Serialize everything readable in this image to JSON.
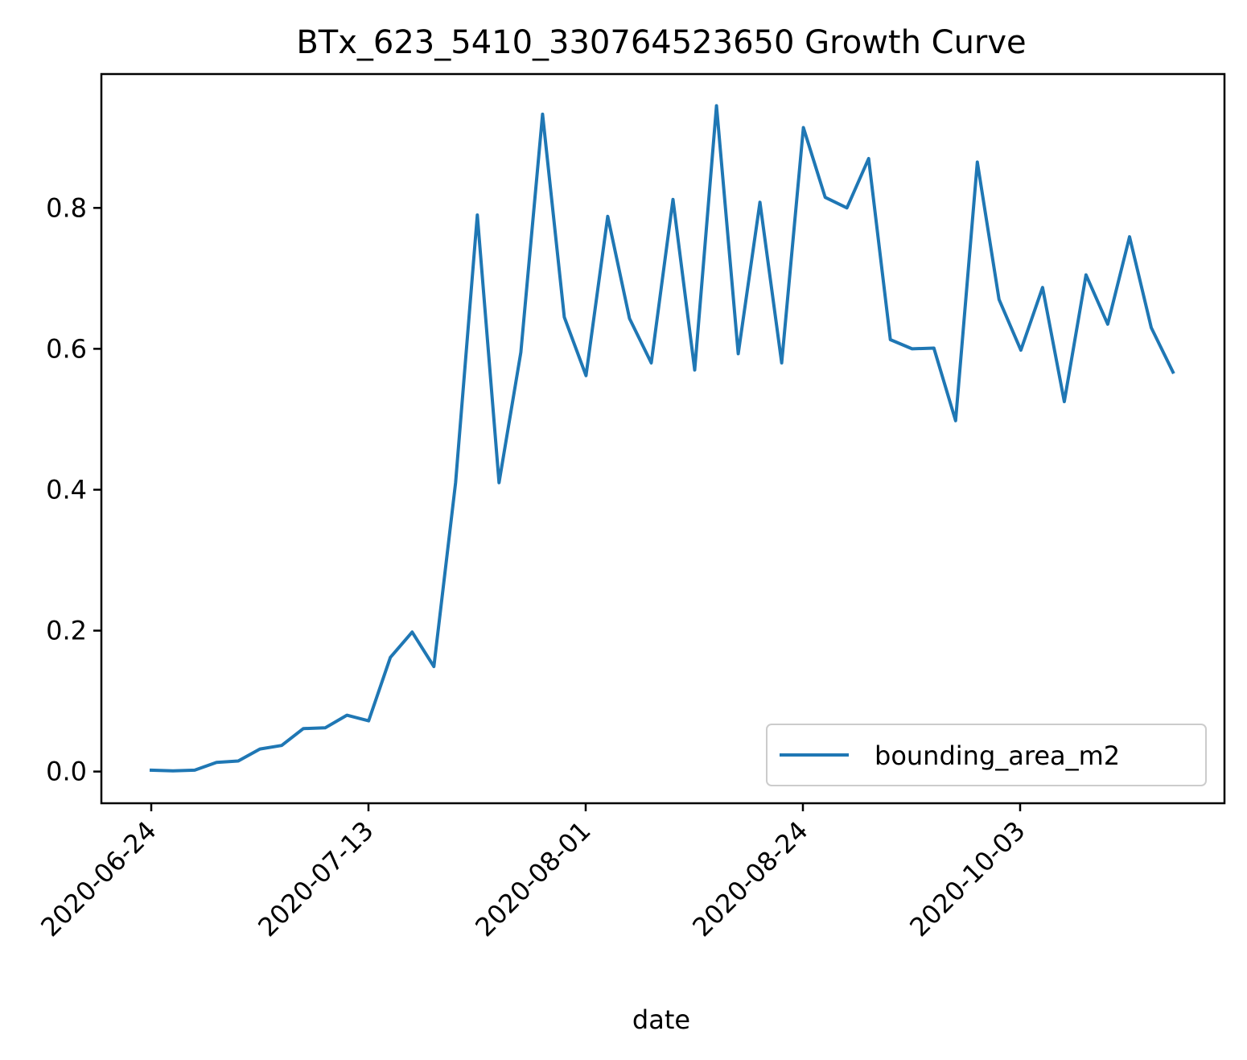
{
  "chart_data": {
    "type": "line",
    "title": "BTx_623_5410_330764523650 Growth Curve",
    "xlabel": "date",
    "ylabel": "",
    "x_tick_labels": [
      "2020-06-24",
      "2020-07-13",
      "2020-08-01",
      "2020-08-24",
      "2020-10-03"
    ],
    "y_tick_labels": [
      "0.0",
      "0.2",
      "0.4",
      "0.6",
      "0.8"
    ],
    "ylim": [
      -0.045,
      0.99
    ],
    "grid": false,
    "legend_position": "lower-right",
    "series": [
      {
        "name": "bounding_area_m2",
        "color": "#1f77b4",
        "values": [
          0.002,
          0.001,
          0.002,
          0.013,
          0.015,
          0.032,
          0.037,
          0.061,
          0.062,
          0.08,
          0.072,
          0.162,
          0.198,
          0.149,
          0.41,
          0.79,
          0.41,
          0.595,
          0.933,
          0.645,
          0.562,
          0.788,
          0.643,
          0.58,
          0.812,
          0.57,
          0.945,
          0.593,
          0.808,
          0.58,
          0.914,
          0.815,
          0.8,
          0.87,
          0.613,
          0.6,
          0.601,
          0.498,
          0.865,
          0.67,
          0.598,
          0.687,
          0.525,
          0.705,
          0.635,
          0.759,
          0.63,
          0.567
        ]
      }
    ]
  }
}
